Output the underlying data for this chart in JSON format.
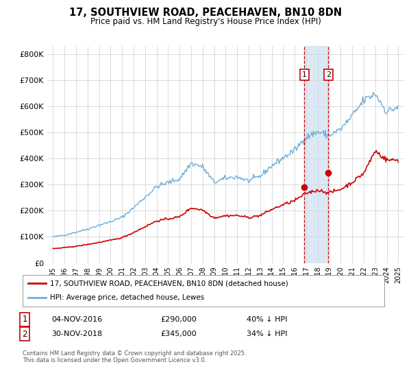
{
  "title": "17, SOUTHVIEW ROAD, PEACEHAVEN, BN10 8DN",
  "subtitle": "Price paid vs. HM Land Registry's House Price Index (HPI)",
  "legend_line1": "17, SOUTHVIEW ROAD, PEACEHAVEN, BN10 8DN (detached house)",
  "legend_line2": "HPI: Average price, detached house, Lewes",
  "footer": "Contains HM Land Registry data © Crown copyright and database right 2025.\nThis data is licensed under the Open Government Licence v3.0.",
  "transaction1_date": "04-NOV-2016",
  "transaction1_price": "£290,000",
  "transaction1_hpi": "40% ↓ HPI",
  "transaction2_date": "30-NOV-2018",
  "transaction2_price": "£345,000",
  "transaction2_hpi": "34% ↓ HPI",
  "vline1_x": 2016.84,
  "vline2_x": 2018.92,
  "dot1_x": 2016.84,
  "dot1_y": 290000,
  "dot2_x": 2018.92,
  "dot2_y": 345000,
  "red_color": "#cc0000",
  "blue_color": "#6baed6",
  "shade_color": "#c6dbef",
  "ylim": [
    0,
    830000
  ],
  "xlim_left": 1994.5,
  "xlim_right": 2025.5,
  "yticks": [
    0,
    100000,
    200000,
    300000,
    400000,
    500000,
    600000,
    700000,
    800000
  ],
  "ytick_labels": [
    "£0",
    "£100K",
    "£200K",
    "£300K",
    "£400K",
    "£500K",
    "£600K",
    "£700K",
    "£800K"
  ],
  "xticks": [
    1995,
    1996,
    1997,
    1998,
    1999,
    2000,
    2001,
    2002,
    2003,
    2004,
    2005,
    2006,
    2007,
    2008,
    2009,
    2010,
    2011,
    2012,
    2013,
    2014,
    2015,
    2016,
    2017,
    2018,
    2019,
    2020,
    2021,
    2022,
    2023,
    2024,
    2025
  ],
  "background_color": "#ffffff",
  "grid_color": "#cccccc",
  "hpi_anchors": {
    "1995": 100000,
    "1996": 107000,
    "1997": 118000,
    "1998": 130000,
    "1999": 145000,
    "2000": 158000,
    "2001": 175000,
    "2002": 212000,
    "2003": 252000,
    "2004": 292000,
    "2005": 308000,
    "2006": 322000,
    "2007": 382000,
    "2008": 368000,
    "2009": 308000,
    "2010": 324000,
    "2011": 330000,
    "2012": 314000,
    "2013": 332000,
    "2014": 372000,
    "2015": 402000,
    "2016": 432000,
    "2017": 482000,
    "2018": 502000,
    "2019": 488000,
    "2020": 512000,
    "2021": 562000,
    "2022": 622000,
    "2023": 648000,
    "2024": 578000,
    "2025": 598000
  },
  "red_anchors": {
    "1995": 55000,
    "1996": 59000,
    "1997": 64000,
    "1998": 71000,
    "1999": 79000,
    "2000": 87000,
    "2001": 97000,
    "2002": 117000,
    "2003": 139000,
    "2004": 161000,
    "2005": 169000,
    "2006": 177000,
    "2007": 211000,
    "2008": 203000,
    "2009": 173000,
    "2010": 181000,
    "2011": 182000,
    "2012": 174000,
    "2013": 182000,
    "2014": 205000,
    "2015": 223000,
    "2016": 239000,
    "2017": 267000,
    "2018": 279000,
    "2019": 269000,
    "2020": 282000,
    "2021": 309000,
    "2022": 344000,
    "2023": 429000,
    "2024": 394000,
    "2025": 394000
  }
}
